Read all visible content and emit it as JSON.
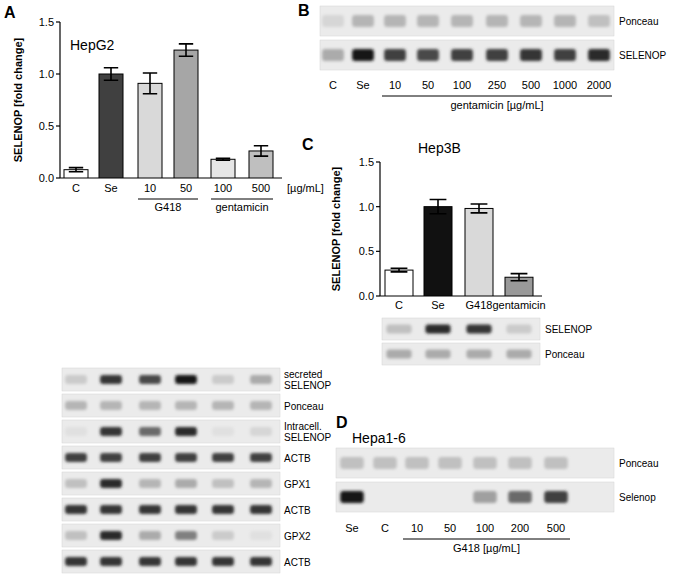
{
  "chart_data": [
    {
      "type": "bar",
      "panel": "A",
      "title": "HepG2",
      "y_label": "SELENOP [fold change]",
      "categories": [
        "C",
        "Se",
        "10",
        "50",
        "100",
        "500"
      ],
      "groups": [
        null,
        null,
        "G418",
        "G418",
        "gentamicin",
        "gentamicin"
      ],
      "x_unit": "[µg/mL]",
      "values": [
        0.08,
        1.0,
        0.91,
        1.23,
        0.18,
        0.26
      ],
      "errors": [
        0.02,
        0.06,
        0.1,
        0.06,
        0.01,
        0.05
      ],
      "colors": [
        "#ffffff",
        "#404040",
        "#d9d9d9",
        "#a6a6a6",
        "#e6e6e6",
        "#bfbfbf"
      ],
      "ylim": [
        0,
        1.5
      ],
      "yticks": [
        {
          "value": 0,
          "label": "0.0"
        },
        {
          "value": 0.5,
          "label": "0.5"
        },
        {
          "value": 1.0,
          "label": "1.0"
        },
        {
          "value": 1.5,
          "label": "1.5"
        }
      ]
    },
    {
      "type": "blot",
      "rows": [
        {
          "label": "secreted SELENOP",
          "bands": [
            0.15,
            0.85,
            0.75,
            1.0,
            0.15,
            0.3
          ]
        },
        {
          "label": "Ponceau",
          "bands": [
            0.25,
            0.25,
            0.25,
            0.25,
            0.25,
            0.25
          ]
        },
        {
          "label": "Intracell. SELENOP",
          "bands": [
            0.05,
            0.85,
            0.6,
            0.9,
            0.05,
            0.1
          ]
        },
        {
          "label": "ACTB",
          "bands": [
            0.8,
            0.8,
            0.8,
            0.8,
            0.8,
            0.8
          ]
        },
        {
          "label": "GPX1",
          "bands": [
            0.2,
            0.9,
            0.25,
            0.3,
            0.2,
            0.25
          ]
        },
        {
          "label": "ACTB",
          "bands": [
            0.85,
            0.85,
            0.85,
            0.85,
            0.85,
            0.85
          ]
        },
        {
          "label": "GPX2",
          "bands": [
            0.2,
            0.9,
            0.3,
            0.5,
            0.15,
            0.05
          ]
        },
        {
          "label": "ACTB",
          "bands": [
            0.85,
            0.85,
            0.85,
            0.85,
            0.85,
            0.85
          ]
        }
      ]
    },
    {
      "type": "blot",
      "panel": "B",
      "categories": [
        "C",
        "Se",
        "10",
        "50",
        "100",
        "250",
        "500",
        "1000",
        "2000"
      ],
      "groups": [
        null,
        null,
        "gentamicin [µg/mL]",
        "gentamicin [µg/mL]",
        "gentamicin [µg/mL]",
        "gentamicin [µg/mL]",
        "gentamicin [µg/mL]",
        "gentamicin [µg/mL]",
        "gentamicin [µg/mL]"
      ],
      "rows": [
        {
          "label": "Ponceau",
          "bands": [
            0.1,
            0.25,
            0.25,
            0.25,
            0.25,
            0.25,
            0.25,
            0.25,
            0.2
          ]
        },
        {
          "label": "SELENOP",
          "bands": [
            0.3,
            1.0,
            0.8,
            0.75,
            0.8,
            0.8,
            0.85,
            0.8,
            0.9
          ]
        }
      ]
    },
    {
      "type": "bar",
      "panel": "C",
      "title": "Hep3B",
      "y_label": "SELENOP [fold change]",
      "categories": [
        "C",
        "Se",
        "G418",
        "gentamicin"
      ],
      "values": [
        0.29,
        1.0,
        0.98,
        0.21
      ],
      "errors": [
        0.02,
        0.08,
        0.05,
        0.04
      ],
      "colors": [
        "#ffffff",
        "#111111",
        "#d9d9d9",
        "#999999"
      ],
      "ylim": [
        0,
        1.5
      ],
      "yticks": [
        {
          "value": 0,
          "label": "0.0"
        },
        {
          "value": 0.5,
          "label": "0.5"
        },
        {
          "value": 1.0,
          "label": "1.0"
        },
        {
          "value": 1.5,
          "label": "1.5"
        }
      ]
    },
    {
      "type": "blot",
      "rows": [
        {
          "label": "SELENOP",
          "bands": [
            0.2,
            0.9,
            0.85,
            0.15
          ]
        },
        {
          "label": "Ponceau",
          "bands": [
            0.3,
            0.3,
            0.3,
            0.3
          ]
        }
      ]
    },
    {
      "type": "blot",
      "panel": "D",
      "title": "Hepa1-6",
      "categories": [
        "Se",
        "C",
        "10",
        "50",
        "100",
        "200",
        "500"
      ],
      "groups": [
        null,
        null,
        "G418 [µg/mL]",
        "G418 [µg/mL]",
        "G418 [µg/mL]",
        "G418 [µg/mL]",
        "G418 [µg/mL]"
      ],
      "rows": [
        {
          "label": "Ponceau",
          "bands": [
            0.2,
            0.2,
            0.2,
            0.2,
            0.2,
            0.2,
            0.2
          ]
        },
        {
          "label": "Selenop",
          "bands": [
            1.0,
            0.0,
            0.0,
            0.0,
            0.35,
            0.6,
            0.8
          ]
        }
      ]
    }
  ]
}
